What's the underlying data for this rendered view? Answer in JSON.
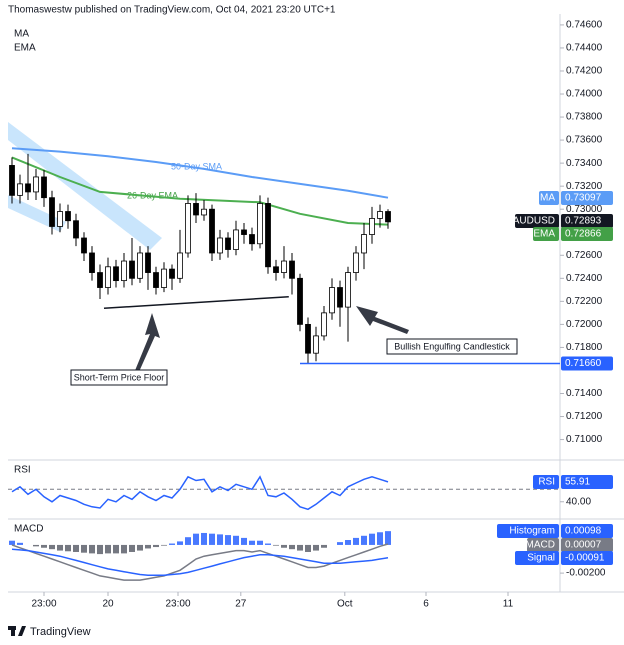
{
  "chart_data": [
    {
      "type": "candlestick",
      "header": "Thomaswestw published on TradingView.com, Oct 04, 2021 23:20 UTC+1",
      "legend": [
        "MA",
        "EMA"
      ],
      "footer": "TradingView",
      "x": [
        0,
        1,
        2,
        3,
        4,
        5,
        6,
        7,
        8,
        9,
        10,
        11,
        12,
        13,
        14,
        15,
        16,
        17,
        18,
        19,
        20,
        21,
        22,
        23,
        24,
        25,
        26,
        27,
        28,
        29,
        30,
        31,
        32,
        33,
        34,
        35,
        36,
        37,
        38,
        39,
        40,
        41,
        42,
        43,
        44,
        45,
        46,
        47
      ],
      "open": [
        0.7338,
        0.7312,
        0.7322,
        0.7315,
        0.7328,
        0.731,
        0.7285,
        0.7298,
        0.729,
        0.7275,
        0.7262,
        0.7245,
        0.7232,
        0.725,
        0.7238,
        0.7255,
        0.724,
        0.7262,
        0.7245,
        0.7232,
        0.7248,
        0.724,
        0.7262,
        0.7305,
        0.7295,
        0.73,
        0.7262,
        0.7275,
        0.7265,
        0.7282,
        0.7278,
        0.727,
        0.7305,
        0.725,
        0.7245,
        0.7255,
        0.724,
        0.72,
        0.7175,
        0.719,
        0.721,
        0.7232,
        0.7215,
        0.7245,
        0.7262,
        0.7278,
        0.7292,
        0.7298
      ],
      "high": [
        0.7345,
        0.733,
        0.7348,
        0.7335,
        0.7334,
        0.7316,
        0.7305,
        0.7304,
        0.7296,
        0.728,
        0.7268,
        0.7252,
        0.7258,
        0.7256,
        0.7262,
        0.7275,
        0.7268,
        0.7268,
        0.725,
        0.7254,
        0.7252,
        0.7282,
        0.7312,
        0.7314,
        0.7308,
        0.7304,
        0.7282,
        0.728,
        0.729,
        0.7288,
        0.7284,
        0.7312,
        0.731,
        0.7256,
        0.7268,
        0.7262,
        0.7244,
        0.7206,
        0.7198,
        0.7216,
        0.724,
        0.7238,
        0.725,
        0.7268,
        0.7288,
        0.7302,
        0.7304,
        0.73
      ],
      "low": [
        0.7305,
        0.7305,
        0.7308,
        0.7308,
        0.7302,
        0.7278,
        0.728,
        0.7283,
        0.7268,
        0.7255,
        0.7238,
        0.7222,
        0.7226,
        0.7232,
        0.7232,
        0.7234,
        0.7236,
        0.723,
        0.7226,
        0.7228,
        0.723,
        0.7236,
        0.7258,
        0.7288,
        0.729,
        0.7255,
        0.7256,
        0.7258,
        0.726,
        0.727,
        0.7264,
        0.7266,
        0.7244,
        0.7238,
        0.724,
        0.7226,
        0.7194,
        0.7166,
        0.7168,
        0.7186,
        0.7204,
        0.7198,
        0.7185,
        0.7238,
        0.7248,
        0.727,
        0.7284,
        0.7283
      ],
      "close": [
        0.7312,
        0.7322,
        0.7315,
        0.7328,
        0.731,
        0.7285,
        0.7298,
        0.729,
        0.7275,
        0.7262,
        0.7245,
        0.7232,
        0.725,
        0.7238,
        0.7255,
        0.724,
        0.7262,
        0.7245,
        0.7232,
        0.7248,
        0.724,
        0.7262,
        0.7305,
        0.7295,
        0.73,
        0.7262,
        0.7275,
        0.7265,
        0.7282,
        0.7278,
        0.727,
        0.7305,
        0.725,
        0.7245,
        0.7255,
        0.724,
        0.72,
        0.7175,
        0.719,
        0.721,
        0.7232,
        0.7215,
        0.7245,
        0.7262,
        0.7278,
        0.7292,
        0.7298,
        0.7289
      ],
      "up_color": "#ffffff",
      "down_color": "#000000",
      "overlays": [
        {
          "name": "50-Day SMA",
          "color": "#5b9cf6",
          "x": [
            0,
            6,
            12,
            18,
            24,
            30,
            36,
            42,
            47
          ],
          "values": [
            0.7353,
            0.735,
            0.7346,
            0.7341,
            0.7335,
            0.7328,
            0.7322,
            0.7316,
            0.731
          ]
        },
        {
          "name": "26-Day EMA",
          "color": "#4caf50",
          "x": [
            0,
            6,
            11,
            21,
            31,
            36,
            42,
            47
          ],
          "values": [
            0.7345,
            0.7328,
            0.7315,
            0.7309,
            0.7306,
            0.7296,
            0.7288,
            0.72866
          ]
        }
      ],
      "support": {
        "name": "Short-Term Price Floor",
        "color": "#131722",
        "x": [
          11.5,
          34.6
        ],
        "values": [
          0.7214,
          0.7224
        ]
      },
      "engulfing": "Bullish Engulfing Candlestick",
      "level": {
        "value": 0.7166,
        "label": "0.71660",
        "color": "#2962ff",
        "x_start": 36
      },
      "badges": [
        {
          "name": "MA",
          "value": 0.73097,
          "label": "0.73097",
          "color": "#5b9cf6"
        },
        {
          "name": "AUDUSD",
          "value": 0.72893,
          "label": "0.72893",
          "color": "#131722"
        },
        {
          "name": "EMA",
          "value": 0.72866,
          "label": "0.72866",
          "color": "#43a047"
        }
      ],
      "xlim": [
        -0.5,
        68.5
      ],
      "xticks": [
        {
          "value": 4,
          "label": "23:00"
        },
        {
          "value": 12,
          "label": "20"
        },
        {
          "value": 20.75,
          "label": "23:00"
        },
        {
          "value": 28.6,
          "label": "27"
        },
        {
          "value": 41.6,
          "label": "Oct"
        },
        {
          "value": 51.75,
          "label": "6"
        },
        {
          "value": 62,
          "label": "11"
        }
      ],
      "ylim": [
        0.7084,
        0.7466
      ],
      "yticks": [
        {
          "value": 0.746,
          "label": "0.74600"
        },
        {
          "value": 0.744,
          "label": "0.74400"
        },
        {
          "value": 0.742,
          "label": "0.74200"
        },
        {
          "value": 0.74,
          "label": "0.74000"
        },
        {
          "value": 0.738,
          "label": "0.73800"
        },
        {
          "value": 0.736,
          "label": "0.73600"
        },
        {
          "value": 0.734,
          "label": "0.73400"
        },
        {
          "value": 0.732,
          "label": "0.73200"
        },
        {
          "value": 0.73,
          "label": "0.73000"
        },
        {
          "value": 0.726,
          "label": "0.72600"
        },
        {
          "value": 0.724,
          "label": "0.72400"
        },
        {
          "value": 0.722,
          "label": "0.72200"
        },
        {
          "value": 0.72,
          "label": "0.72000"
        },
        {
          "value": 0.718,
          "label": "0.71800"
        },
        {
          "value": 0.714,
          "label": "0.71400"
        },
        {
          "value": 0.712,
          "label": "0.71200"
        },
        {
          "value": 0.71,
          "label": "0.71000"
        }
      ],
      "grid": false
    },
    {
      "type": "line",
      "title": "RSI",
      "color": "#2962ff",
      "x": [
        0,
        1,
        2,
        3,
        4,
        5,
        6,
        7,
        8,
        9,
        10,
        11,
        12,
        13,
        14,
        15,
        16,
        17,
        18,
        19,
        20,
        21,
        22,
        23,
        24,
        25,
        26,
        27,
        28,
        29,
        30,
        31,
        32,
        33,
        34,
        35,
        36,
        37,
        38,
        39,
        40,
        41,
        42,
        43,
        44,
        45,
        46,
        47
      ],
      "values": [
        48,
        52,
        46,
        50,
        44,
        40,
        45,
        43,
        41,
        38,
        36,
        35,
        42,
        40,
        45,
        42,
        48,
        44,
        41,
        45,
        43,
        50,
        60,
        57,
        58,
        48,
        52,
        49,
        54,
        52,
        50,
        60,
        45,
        44,
        47,
        42,
        36,
        34,
        38,
        43,
        48,
        45,
        52,
        55,
        58,
        60,
        58,
        55.91
      ],
      "midline": 50,
      "badges": [
        {
          "name": "RSI",
          "value": 55.91,
          "label": "55.91",
          "color": "#2962ff"
        }
      ],
      "ylim": [
        27,
        71
      ],
      "yticks": [
        {
          "value": 40,
          "label": "40.00"
        }
      ]
    },
    {
      "type": "macd",
      "title": "MACD",
      "x": [
        0,
        1,
        2,
        3,
        4,
        5,
        6,
        7,
        8,
        9,
        10,
        11,
        12,
        13,
        14,
        15,
        16,
        17,
        18,
        19,
        20,
        21,
        22,
        23,
        24,
        25,
        26,
        27,
        28,
        29,
        30,
        31,
        32,
        33,
        34,
        35,
        36,
        37,
        38,
        39,
        40,
        41,
        42,
        43,
        44,
        45,
        46,
        47
      ],
      "histogram": [
        0.0003,
        0.00015,
        0,
        -0.0001,
        -0.0002,
        -0.0003,
        -0.0004,
        -0.00045,
        -0.0005,
        -0.00055,
        -0.0006,
        -0.00065,
        -0.0006,
        -0.0006,
        -0.0006,
        -0.0005,
        -0.0004,
        -0.00025,
        -0.00015,
        -5e-05,
        0.0001,
        0.00025,
        0.00055,
        0.0008,
        0.00085,
        0.0008,
        0.00075,
        0.0007,
        0.00065,
        0.0005,
        0.0003,
        0.0003,
        0.0001,
        -5e-05,
        -0.0002,
        -0.0003,
        -0.0004,
        -0.0005,
        -0.0004,
        -0.0002,
        0,
        0.0002,
        0.00035,
        0.0005,
        0.00065,
        0.0008,
        0.0009,
        0.00098
      ],
      "macd": [
        0,
        -0.0002,
        -0.0004,
        -0.0006,
        -0.0008,
        -0.001,
        -0.0012,
        -0.0014,
        -0.0016,
        -0.0018,
        -0.002,
        -0.0022,
        -0.0023,
        -0.0024,
        -0.0025,
        -0.0025,
        -0.0025,
        -0.0024,
        -0.0023,
        -0.0022,
        -0.002,
        -0.0018,
        -0.0014,
        -0.001,
        -0.0008,
        -0.0007,
        -0.0006,
        -0.0005,
        -0.0004,
        -0.0004,
        -0.0005,
        -0.0004,
        -0.0006,
        -0.0008,
        -0.001,
        -0.0012,
        -0.0014,
        -0.0016,
        -0.0016,
        -0.0015,
        -0.0013,
        -0.0011,
        -0.0009,
        -0.0007,
        -0.0005,
        -0.0003,
        -0.0001,
        7e-05
      ],
      "signal": [
        -0.0003,
        -0.00035,
        -0.0004,
        -0.0005,
        -0.0006,
        -0.0007,
        -0.0008,
        -0.00095,
        -0.0011,
        -0.00125,
        -0.0014,
        -0.00155,
        -0.0017,
        -0.0018,
        -0.0019,
        -0.002,
        -0.0021,
        -0.00215,
        -0.00215,
        -0.00215,
        -0.0021,
        -0.00205,
        -0.00195,
        -0.0018,
        -0.00165,
        -0.0015,
        -0.00135,
        -0.0012,
        -0.00105,
        -0.0009,
        -0.0008,
        -0.0007,
        -0.0007,
        -0.00075,
        -0.0008,
        -0.0009,
        -0.001,
        -0.0011,
        -0.0012,
        -0.0013,
        -0.0013,
        -0.0013,
        -0.00125,
        -0.0012,
        -0.00115,
        -0.0011,
        -0.001,
        -0.00091
      ],
      "colors": {
        "positive": "#2962ff",
        "negative": "#5d606b",
        "macd": "#787b86",
        "signal": "#2962ff"
      },
      "badges": [
        {
          "name": "Histogram",
          "value": 0.00098,
          "label": "0.00098",
          "color": "#2962ff"
        },
        {
          "name": "MACD",
          "value": 7e-05,
          "label": "0.00007",
          "color": "#787b86"
        },
        {
          "name": "Signal",
          "value": -0.00091,
          "label": "-0.00091",
          "color": "#2962ff"
        }
      ],
      "ylim": [
        -0.0032,
        0.0017
      ],
      "yticks": [
        {
          "value": -0.002,
          "label": "-0.00200"
        }
      ]
    }
  ]
}
